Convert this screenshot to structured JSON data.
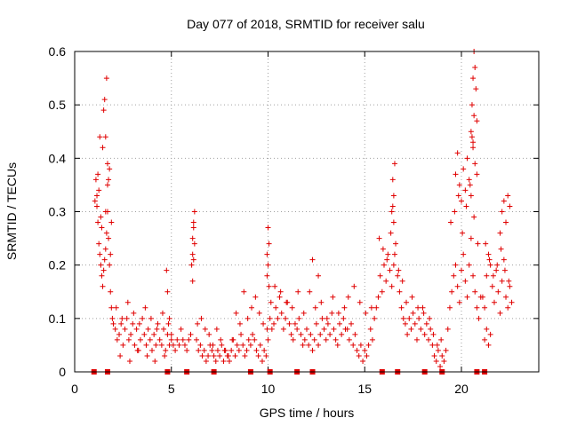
{
  "chart_data": {
    "type": "scatter",
    "title": "Day 077 of 2018, SRMTID for receiver salu",
    "xlabel": "GPS time / hours",
    "ylabel": "SRMTID / TECUs",
    "xlim": [
      0,
      24
    ],
    "ylim": [
      0,
      0.6
    ],
    "xticks": [
      0,
      5,
      10,
      15,
      20
    ],
    "yticks": [
      0,
      0.1,
      0.2,
      0.3,
      0.4,
      0.5,
      0.6
    ],
    "xtick_labels": [
      "0",
      "5",
      "10",
      "15",
      "20"
    ],
    "ytick_labels": [
      "0",
      "0.1",
      "0.2",
      "0.3",
      "0.4",
      "0.5",
      "0.6"
    ],
    "grid": true,
    "marker": "+",
    "color": "#e00000",
    "series": [
      {
        "name": "SRMTID",
        "x": [
          1.05,
          1.1,
          1.15,
          1.2,
          1.25,
          1.3,
          1.35,
          1.4,
          1.45,
          1.5,
          1.55,
          1.6,
          1.65,
          1.7,
          1.75,
          1.8,
          1.85,
          1.9,
          1.95,
          2.0,
          1.2,
          1.3,
          1.45,
          1.6,
          1.7,
          1.75,
          1.55,
          1.65,
          1.25,
          1.35,
          1.15,
          1.5,
          1.8,
          1.9,
          1.4,
          1.6,
          1.7,
          1.85,
          2.1,
          2.2,
          2.3,
          2.4,
          2.5,
          2.6,
          2.7,
          2.8,
          2.9,
          3.0,
          3.1,
          3.2,
          3.3,
          3.4,
          3.5,
          3.6,
          3.7,
          3.8,
          3.9,
          4.0,
          4.1,
          4.2,
          4.3,
          4.4,
          4.5,
          4.6,
          4.7,
          4.8,
          4.9,
          5.0,
          2.15,
          2.45,
          2.75,
          3.05,
          3.35,
          3.65,
          3.95,
          4.25,
          4.55,
          4.85,
          2.35,
          2.85,
          3.25,
          3.75,
          4.15,
          4.65,
          4.75,
          4.8,
          4.9,
          5.0,
          5.1,
          5.2,
          5.3,
          5.4,
          5.5,
          5.6,
          5.7,
          5.8,
          5.9,
          6.0,
          6.05,
          6.1,
          6.15,
          6.2,
          6.1,
          6.15,
          6.2,
          6.1,
          6.15,
          6.3,
          6.4,
          6.5,
          6.6,
          6.7,
          6.8,
          6.9,
          7.0,
          7.1,
          7.2,
          7.3,
          7.4,
          7.5,
          7.6,
          7.7,
          7.8,
          7.9,
          8.0,
          8.1,
          8.2,
          8.3,
          8.4,
          8.5,
          8.6,
          8.7,
          8.8,
          8.9,
          9.0,
          6.35,
          6.55,
          6.75,
          6.95,
          7.15,
          7.35,
          7.55,
          7.75,
          7.95,
          8.15,
          8.35,
          8.55,
          8.75,
          8.95,
          9.1,
          9.2,
          9.3,
          9.4,
          9.5,
          9.6,
          9.7,
          9.8,
          9.9,
          10.0,
          10.1,
          10.2,
          9.15,
          9.35,
          9.55,
          9.75,
          9.95,
          10.15,
          9.95,
          10.0,
          10.05,
          10.0,
          9.95,
          10.05,
          10.3,
          10.4,
          10.5,
          10.6,
          10.7,
          10.8,
          10.9,
          11.0,
          11.1,
          11.2,
          11.3,
          11.4,
          11.5,
          11.6,
          11.7,
          11.8,
          11.9,
          12.0,
          10.35,
          10.65,
          10.95,
          11.25,
          11.55,
          11.85,
          12.1,
          12.2,
          12.3,
          12.4,
          12.5,
          12.6,
          12.7,
          12.8,
          12.9,
          13.0,
          13.1,
          13.2,
          13.3,
          13.4,
          13.5,
          13.6,
          13.7,
          13.8,
          13.9,
          14.0,
          12.15,
          12.45,
          12.75,
          13.05,
          13.35,
          13.65,
          13.95,
          12.3,
          12.6,
          14.1,
          14.2,
          14.3,
          14.4,
          14.5,
          14.6,
          14.7,
          14.8,
          14.9,
          15.0,
          15.1,
          15.2,
          15.3,
          15.4,
          15.5,
          14.15,
          14.45,
          14.75,
          15.05,
          15.35,
          15.6,
          15.7,
          15.8,
          15.9,
          16.0,
          16.1,
          16.2,
          16.3,
          16.4,
          16.5,
          16.6,
          16.7,
          16.8,
          16.9,
          17.0,
          15.75,
          15.95,
          16.15,
          16.35,
          16.55,
          16.75,
          16.95,
          16.4,
          16.5,
          16.45,
          16.55,
          16.5,
          16.45,
          17.1,
          17.2,
          17.3,
          17.4,
          17.5,
          17.6,
          17.7,
          17.8,
          17.9,
          18.0,
          18.1,
          18.2,
          18.3,
          18.4,
          17.15,
          17.45,
          17.75,
          18.05,
          18.35,
          18.5,
          18.6,
          18.7,
          18.8,
          18.9,
          19.0,
          19.1,
          19.2,
          18.55,
          18.75,
          18.95,
          19.3,
          19.4,
          19.5,
          19.6,
          19.7,
          19.8,
          19.9,
          20.0,
          20.1,
          20.2,
          20.3,
          20.4,
          20.5,
          20.6,
          20.7,
          20.8,
          20.9,
          21.0,
          19.45,
          19.65,
          19.85,
          20.05,
          20.25,
          20.45,
          20.65,
          20.85,
          19.7,
          19.8,
          19.9,
          20.0,
          20.1,
          20.2,
          20.3,
          20.4,
          20.5,
          20.6,
          20.7,
          20.8,
          20.5,
          20.55,
          20.6,
          20.65,
          20.7,
          20.75,
          20.8,
          20.6,
          20.65,
          20.55,
          21.1,
          21.2,
          21.3,
          21.4,
          21.5,
          21.6,
          21.7,
          21.8,
          21.9,
          22.0,
          22.1,
          22.2,
          22.3,
          22.4,
          22.5,
          22.6,
          21.25,
          21.45,
          21.65,
          21.85,
          22.05,
          22.25,
          22.45,
          21.2,
          21.3,
          21.4,
          21.5,
          22.0,
          22.1,
          22.2,
          22.3,
          22.4,
          22.5
        ],
        "y": [
          0.32,
          0.36,
          0.33,
          0.28,
          0.24,
          0.22,
          0.2,
          0.18,
          0.16,
          0.19,
          0.21,
          0.23,
          0.26,
          0.3,
          0.25,
          0.2,
          0.15,
          0.12,
          0.1,
          0.09,
          0.37,
          0.44,
          0.42,
          0.3,
          0.39,
          0.36,
          0.51,
          0.55,
          0.34,
          0.29,
          0.31,
          0.49,
          0.38,
          0.28,
          0.27,
          0.44,
          0.35,
          0.22,
          0.08,
          0.06,
          0.07,
          0.09,
          0.05,
          0.08,
          0.1,
          0.06,
          0.07,
          0.09,
          0.05,
          0.08,
          0.04,
          0.06,
          0.1,
          0.07,
          0.05,
          0.08,
          0.06,
          0.04,
          0.07,
          0.05,
          0.09,
          0.06,
          0.05,
          0.08,
          0.04,
          0.07,
          0.05,
          0.06,
          0.12,
          0.1,
          0.13,
          0.11,
          0.09,
          0.12,
          0.1,
          0.08,
          0.11,
          0.09,
          0.03,
          0.02,
          0.04,
          0.03,
          0.02,
          0.03,
          0.19,
          0.15,
          0.1,
          0.07,
          0.05,
          0.04,
          0.06,
          0.05,
          0.08,
          0.06,
          0.05,
          0.04,
          0.06,
          0.07,
          0.2,
          0.25,
          0.28,
          0.3,
          0.22,
          0.27,
          0.24,
          0.17,
          0.21,
          0.06,
          0.04,
          0.05,
          0.03,
          0.04,
          0.02,
          0.03,
          0.05,
          0.04,
          0.03,
          0.02,
          0.04,
          0.03,
          0.05,
          0.02,
          0.04,
          0.03,
          0.02,
          0.04,
          0.06,
          0.03,
          0.05,
          0.04,
          0.07,
          0.05,
          0.03,
          0.04,
          0.06,
          0.09,
          0.1,
          0.08,
          0.07,
          0.05,
          0.08,
          0.06,
          0.04,
          0.03,
          0.06,
          0.11,
          0.09,
          0.15,
          0.1,
          0.05,
          0.07,
          0.06,
          0.04,
          0.03,
          0.05,
          0.02,
          0.04,
          0.03,
          0.06,
          0.1,
          0.08,
          0.12,
          0.14,
          0.11,
          0.09,
          0.08,
          0.13,
          0.18,
          0.2,
          0.24,
          0.27,
          0.22,
          0.16,
          0.09,
          0.12,
          0.1,
          0.14,
          0.11,
          0.08,
          0.1,
          0.13,
          0.09,
          0.07,
          0.06,
          0.09,
          0.08,
          0.1,
          0.07,
          0.05,
          0.06,
          0.08,
          0.16,
          0.15,
          0.13,
          0.12,
          0.15,
          0.11,
          0.05,
          0.07,
          0.04,
          0.06,
          0.09,
          0.05,
          0.07,
          0.1,
          0.08,
          0.06,
          0.09,
          0.07,
          0.11,
          0.08,
          0.06,
          0.05,
          0.09,
          0.07,
          0.1,
          0.08,
          0.15,
          0.12,
          0.13,
          0.1,
          0.14,
          0.11,
          0.12,
          0.21,
          0.18,
          0.08,
          0.06,
          0.09,
          0.05,
          0.07,
          0.04,
          0.03,
          0.05,
          0.02,
          0.04,
          0.03,
          0.05,
          0.08,
          0.06,
          0.1,
          0.14,
          0.16,
          0.13,
          0.11,
          0.12,
          0.12,
          0.14,
          0.18,
          0.15,
          0.2,
          0.17,
          0.22,
          0.19,
          0.16,
          0.2,
          0.24,
          0.18,
          0.15,
          0.12,
          0.1,
          0.25,
          0.23,
          0.21,
          0.26,
          0.22,
          0.19,
          0.17,
          0.3,
          0.33,
          0.36,
          0.39,
          0.28,
          0.31,
          0.09,
          0.07,
          0.1,
          0.08,
          0.11,
          0.09,
          0.06,
          0.1,
          0.08,
          0.12,
          0.07,
          0.09,
          0.06,
          0.08,
          0.13,
          0.14,
          0.12,
          0.11,
          0.1,
          0.05,
          0.03,
          0.02,
          0.04,
          0.01,
          0.03,
          0.02,
          0.04,
          0.07,
          0.05,
          0.06,
          0.08,
          0.12,
          0.15,
          0.18,
          0.2,
          0.16,
          0.13,
          0.19,
          0.22,
          0.17,
          0.14,
          0.2,
          0.25,
          0.18,
          0.15,
          0.12,
          0.1,
          0.14,
          0.28,
          0.3,
          0.33,
          0.26,
          0.31,
          0.35,
          0.29,
          0.24,
          0.37,
          0.41,
          0.35,
          0.32,
          0.38,
          0.34,
          0.4,
          0.36,
          0.33,
          0.42,
          0.39,
          0.37,
          0.45,
          0.5,
          0.55,
          0.6,
          0.57,
          0.53,
          0.47,
          0.43,
          0.48,
          0.44,
          0.14,
          0.12,
          0.18,
          0.22,
          0.2,
          0.16,
          0.13,
          0.19,
          0.15,
          0.11,
          0.17,
          0.21,
          0.14,
          0.12,
          0.16,
          0.13,
          0.24,
          0.21,
          0.18,
          0.2,
          0.23,
          0.19,
          0.17,
          0.06,
          0.08,
          0.05,
          0.07,
          0.26,
          0.3,
          0.32,
          0.28,
          0.33,
          0.31
        ]
      }
    ],
    "bottom_markers_x": [
      1.0,
      1.7,
      4.8,
      5.8,
      7.2,
      9.1,
      10.1,
      11.5,
      12.3,
      15.9,
      16.7,
      18.1,
      19.0,
      20.8,
      21.2
    ]
  }
}
